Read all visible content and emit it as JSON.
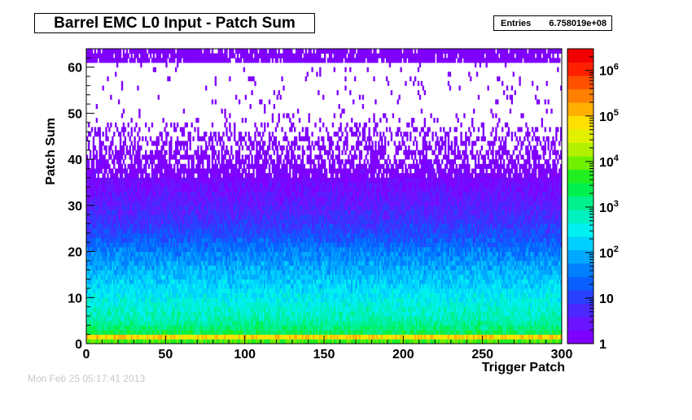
{
  "title": "Barrel EMC L0 Input - Patch Sum",
  "stats": {
    "label": "Entries",
    "value": "6.758019e+08"
  },
  "footer": "Mon Feb 25 05:17:41 2013",
  "colors": {
    "palette": [
      "#7f00ff",
      "#6a14ff",
      "#4a28ff",
      "#2a40ff",
      "#0a60ff",
      "#0080ff",
      "#00a8ff",
      "#00d0ff",
      "#00f0f0",
      "#00f0c0",
      "#00f08c",
      "#00f050",
      "#20f020",
      "#70f000",
      "#b0f000",
      "#e0f000",
      "#ffe000",
      "#ffb000",
      "#ff8000",
      "#ff5000",
      "#ff2000",
      "#f00000"
    ]
  },
  "chart_data": {
    "type": "heatmap",
    "title": "Barrel EMC L0 Input - Patch Sum",
    "xlabel": "Trigger Patch",
    "ylabel": "Patch Sum",
    "xlim": [
      0,
      300
    ],
    "ylim": [
      0,
      64
    ],
    "x_ticks": [
      0,
      50,
      100,
      150,
      200,
      250,
      300
    ],
    "y_ticks": [
      0,
      10,
      20,
      30,
      40,
      50,
      60
    ],
    "z_scale": "log",
    "z_range": [
      1,
      3000000
    ],
    "z_ticks": [
      {
        "value": 1,
        "label": "1"
      },
      {
        "value": 10,
        "label": "10"
      },
      {
        "value": 100,
        "label": "10",
        "sup": "2"
      },
      {
        "value": 1000,
        "label": "10",
        "sup": "3"
      },
      {
        "value": 10000,
        "label": "10",
        "sup": "4"
      },
      {
        "value": 100000,
        "label": "10",
        "sup": "5"
      },
      {
        "value": 1000000,
        "label": "10",
        "sup": "6"
      }
    ],
    "bins": {
      "x": 300,
      "y": 64
    },
    "profile": {
      "patch_sum": [
        0,
        1,
        2,
        5,
        10,
        15,
        20,
        25,
        30,
        35,
        40,
        48,
        62
      ],
      "typical_counts": [
        20,
        2000000,
        3000,
        800,
        300,
        120,
        40,
        10,
        4,
        2,
        1.5,
        1,
        1
      ]
    },
    "grid": false,
    "legend": "color-scale-right"
  }
}
